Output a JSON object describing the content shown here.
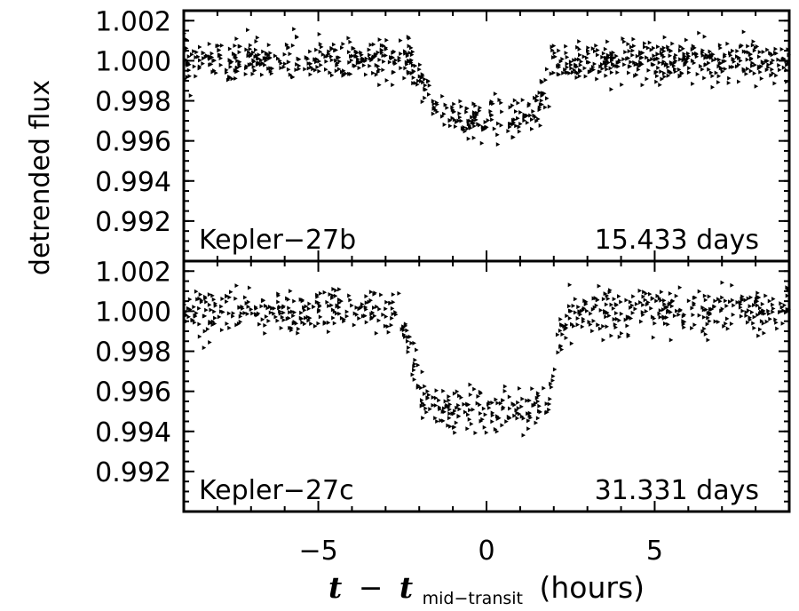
{
  "chart_data": {
    "type": "scatter",
    "ylabel": "detrended flux",
    "xlabel": {
      "t": "t",
      "minus": "−",
      "t2": "t",
      "subscript": "mid−transit",
      "units": "(hours)"
    },
    "xlim": [
      -9,
      9
    ],
    "x_ticks": [
      -5,
      0,
      5
    ],
    "x_tick_labels": [
      "−5",
      "0",
      "5"
    ],
    "marker": "right-pointing triangle",
    "panels": [
      {
        "name": "Kepler−27b",
        "period_label": "15.433 days",
        "ylim": [
          0.99,
          1.0025
        ],
        "y_ticks": [
          0.992,
          0.994,
          0.996,
          0.998,
          1.0,
          1.002
        ],
        "y_tick_labels": [
          "0.992",
          "0.994",
          "0.996",
          "0.998",
          "1.000",
          "1.002"
        ],
        "transit": {
          "depth": 0.0029,
          "ingress_start": -2.3,
          "flat_start": -1.3,
          "flat_end": 1.3,
          "egress_end": 2.1
        },
        "scatter_sigma": 0.0005,
        "num_points": 900
      },
      {
        "name": "Kepler−27c",
        "period_label": "31.331 days",
        "ylim": [
          0.99,
          1.0025
        ],
        "y_ticks": [
          0.992,
          0.994,
          0.996,
          0.998,
          1.0,
          1.002
        ],
        "y_tick_labels": [
          "0.992",
          "0.994",
          "0.996",
          "0.998",
          "1.000",
          "1.002"
        ],
        "transit": {
          "depth": 0.0049,
          "ingress_start": -2.6,
          "flat_start": -1.8,
          "flat_end": 1.8,
          "egress_end": 2.4
        },
        "scatter_sigma": 0.00055,
        "num_points": 750
      }
    ]
  }
}
